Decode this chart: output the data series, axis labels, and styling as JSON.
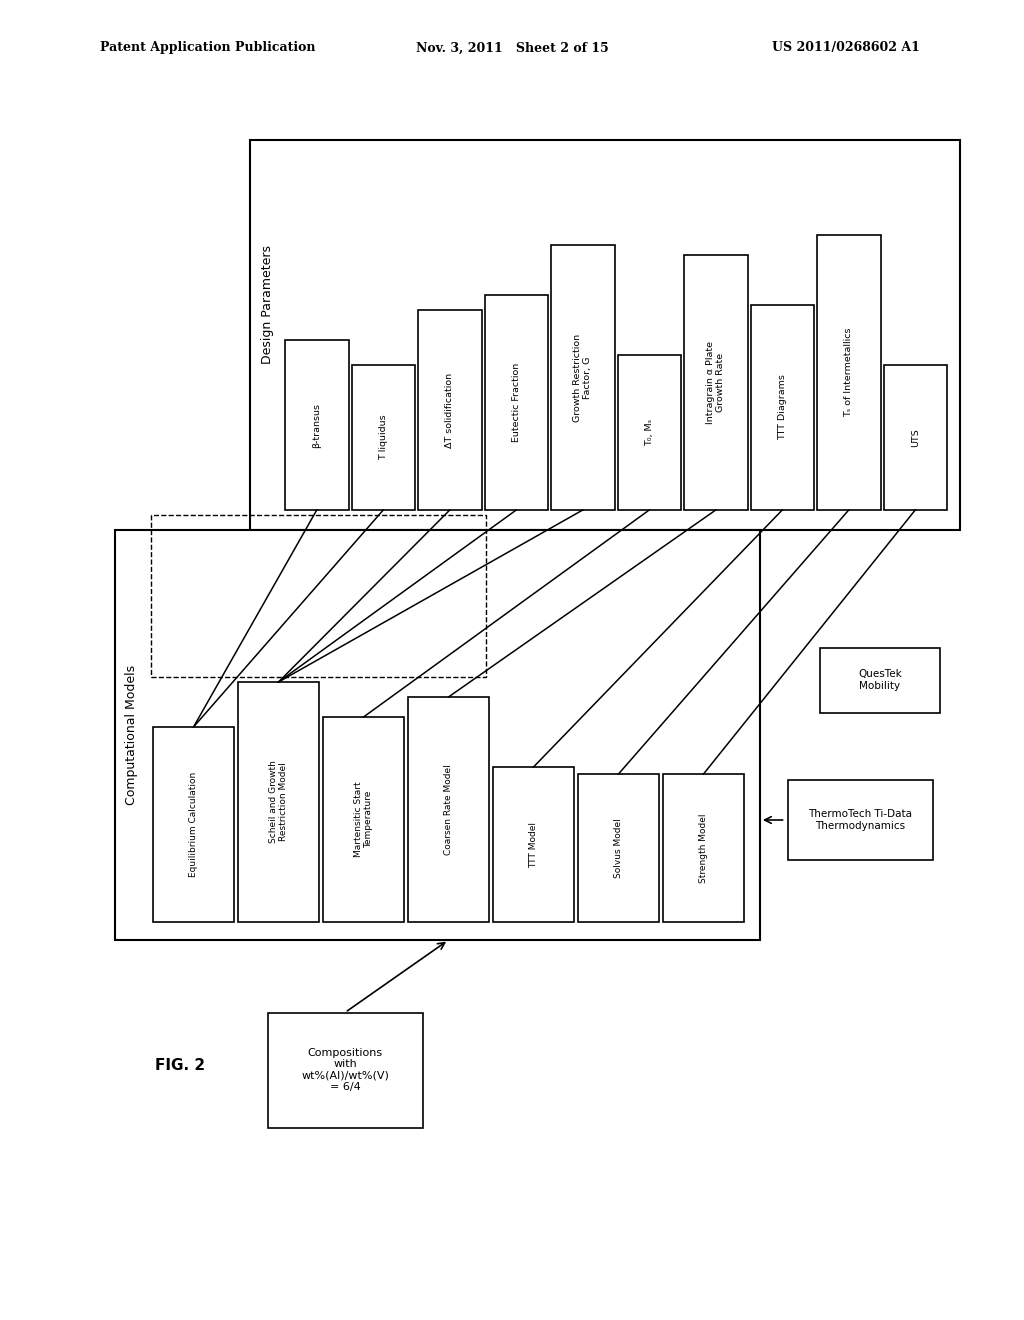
{
  "header_left": "Patent Application Publication",
  "header_mid": "Nov. 3, 2011   Sheet 2 of 15",
  "header_right": "US 2011/0268602 A1",
  "fig_label": "FIG. 2",
  "bg_color": "#ffffff",
  "text_color": "#000000",
  "design_params_label": "Design Parameters",
  "design_param_boxes": [
    "β-transus",
    "T liquidus",
    "ΔT solidification",
    "Eutectic Fraction",
    "Growth Restriction\nFactor, G",
    "T₀, Mₛ",
    "Intragrain α Plate\nGrowth Rate",
    "TTT Diagrams",
    "Tₛ of Intermetallics",
    "UTS"
  ],
  "comp_models_label": "Computational Models",
  "comp_model_boxes": [
    "Equilibrium Calculation",
    "Scheil and Growth\nRestriction Model",
    "Martensitic Start\nTemperature",
    "Coarsen Rate Model",
    "TTT Model",
    "Solvus Model",
    "Strength Model"
  ],
  "input_box_text": "Compositions\nwith\nwt%(Al)/wt%(V)\n= 6/4",
  "thermo_box_text": "ThermoTech Ti-Data\nThermodynamics",
  "questek_box_text": "QuesTek\nMobility"
}
